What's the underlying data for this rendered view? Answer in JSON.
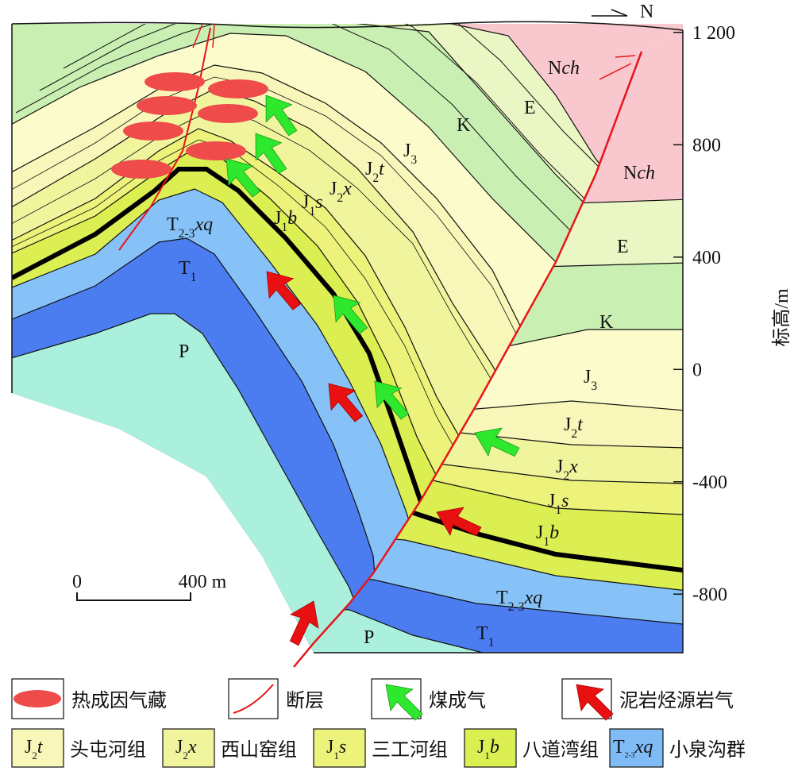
{
  "header": {
    "north": "N"
  },
  "elevation_axis": {
    "label": "标高/m",
    "range": [
      -1000,
      1200
    ],
    "ticks": [
      {
        "value": 1200,
        "label": "1 200"
      },
      800,
      400,
      0,
      -400,
      -800
    ]
  },
  "scale_bar": {
    "start": "0",
    "end": "400 m"
  },
  "section_labels": [
    [
      {
        "t": "N"
      },
      {
        "i": "ch"
      }
    ],
    [
      {
        "t": "E"
      }
    ],
    [
      {
        "t": "K"
      }
    ],
    [
      {
        "t": "J"
      },
      {
        "sub": "3"
      }
    ],
    [
      {
        "t": "J"
      },
      {
        "sub": "2"
      },
      {
        "i": "t"
      }
    ],
    [
      {
        "t": "J"
      },
      {
        "sub": "2"
      },
      {
        "i": "x"
      }
    ],
    [
      {
        "t": "J"
      },
      {
        "sub": "1"
      },
      {
        "i": "s"
      }
    ],
    [
      {
        "t": "J"
      },
      {
        "sub": "1"
      },
      {
        "i": "b"
      }
    ],
    [
      {
        "t": "T"
      },
      {
        "sub": "2-3"
      },
      {
        "i": "xq"
      }
    ],
    [
      {
        "t": "T"
      },
      {
        "sub": "1"
      }
    ],
    [
      {
        "t": "P"
      }
    ],
    [
      {
        "t": "N"
      },
      {
        "i": "ch"
      }
    ],
    [
      {
        "t": "E"
      }
    ],
    [
      {
        "t": "K"
      }
    ],
    [
      {
        "t": "J"
      },
      {
        "sub": "3"
      }
    ],
    [
      {
        "t": "J"
      },
      {
        "sub": "2"
      },
      {
        "i": "t"
      }
    ],
    [
      {
        "t": "J"
      },
      {
        "sub": "2"
      },
      {
        "i": "x"
      }
    ],
    [
      {
        "t": "J"
      },
      {
        "sub": "1"
      },
      {
        "i": "s"
      }
    ],
    [
      {
        "t": "J"
      },
      {
        "sub": "1"
      },
      {
        "i": "b"
      }
    ],
    [
      {
        "t": "T"
      },
      {
        "sub": "2-3"
      },
      {
        "i": "xq"
      }
    ],
    [
      {
        "t": "T"
      },
      {
        "sub": "1"
      }
    ],
    [
      {
        "t": "P"
      }
    ]
  ],
  "legend": {
    "symbols": [
      "热成因气藏",
      "断层",
      "煤成气",
      "泥岩烃源岩气"
    ],
    "formations": [
      {
        "code": [
          {
            "t": "J"
          },
          {
            "sub": "2"
          },
          {
            "i": "t"
          }
        ],
        "name": "头屯河组"
      },
      {
        "code": [
          {
            "t": "J"
          },
          {
            "sub": "2"
          },
          {
            "i": "x"
          }
        ],
        "name": "西山窑组"
      },
      {
        "code": [
          {
            "t": "J"
          },
          {
            "sub": "1"
          },
          {
            "i": "s"
          }
        ],
        "name": "三工河组"
      },
      {
        "code": [
          {
            "t": "J"
          },
          {
            "sub": "1"
          },
          {
            "i": "b"
          }
        ],
        "name": "八道湾组"
      },
      {
        "code": [
          {
            "t": "T"
          },
          {
            "sub": "2-3"
          },
          {
            "i": "xq"
          }
        ],
        "name": "小泉沟群"
      }
    ]
  }
}
